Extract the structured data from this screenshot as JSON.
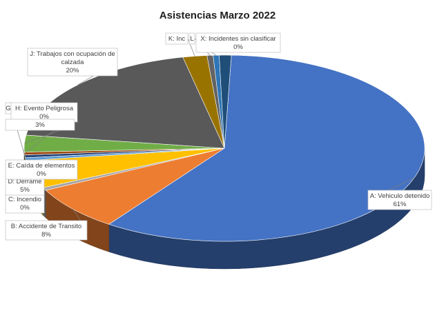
{
  "chart_data": {
    "type": "pie",
    "title": "Asistencias Marzo 2022",
    "slices": [
      {
        "name": "A: Vehiculo detenido",
        "value": 61,
        "label": "61%",
        "color": "#4472C4"
      },
      {
        "name": "B: Accidente de Transito",
        "value": 8,
        "label": "8%",
        "color": "#ED7D31"
      },
      {
        "name": "C: Incendio",
        "value": 0,
        "label": "0%",
        "color": "#A5A5A5"
      },
      {
        "name": "D: Derrame",
        "value": 5,
        "label": "5%",
        "color": "#FFC000"
      },
      {
        "name": "E: Caída de elementos",
        "value": 0,
        "label": "0%",
        "color": "#5B9BD5"
      },
      {
        "name": "G",
        "value": 0,
        "label": "",
        "color": "#264478"
      },
      {
        "name": "H: Evento Peligrosa",
        "value": 0,
        "label": "0%",
        "color": "#9E480E"
      },
      {
        "name": "",
        "value": 3,
        "label": "3%",
        "color": "#70AD47"
      },
      {
        "name": "J: Trabajos con ocupación de calzada",
        "value": 20,
        "label": "20%",
        "color": "#595959"
      },
      {
        "name": "K: Inc",
        "value": 2,
        "label": "",
        "color": "#997300"
      },
      {
        "name": "L",
        "value": 0,
        "label": "",
        "color": "#636363"
      },
      {
        "name": "X: Incidentes sin clasificar",
        "value": 0,
        "label": "0%",
        "color": "#2E75B6"
      },
      {
        "name": "",
        "value": 1,
        "label": "",
        "color": "#1F4E79"
      }
    ],
    "legend": "none"
  }
}
